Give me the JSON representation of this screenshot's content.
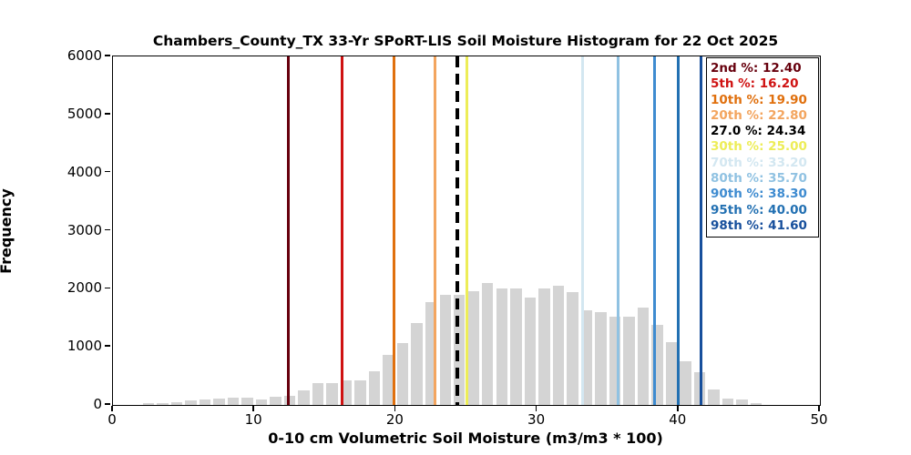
{
  "title": "Chambers_County_TX 33-Yr SPoRT-LIS Soil Moisture Histogram for 22 Oct 2025",
  "axes": {
    "xlabel": "0-10 cm Volumetric Soil Moisture (m3/m3 * 100)",
    "ylabel": "Frequency",
    "x_ticks": [
      0,
      10,
      20,
      30,
      40,
      50
    ],
    "y_ticks": [
      0,
      1000,
      2000,
      3000,
      4000,
      5000,
      6000
    ]
  },
  "chart_data": {
    "type": "bar",
    "title": "Chambers_County_TX 33-Yr SPoRT-LIS Soil Moisture Histogram for 22 Oct 2025",
    "xlabel": "0-10 cm Volumetric Soil Moisture (m3/m3 * 100)",
    "ylabel": "Frequency",
    "xlim": [
      0,
      50
    ],
    "ylim": [
      0,
      6000
    ],
    "grid": false,
    "legend_position": "upper right",
    "bar_color": "#d4d4d4",
    "bin_width": 1,
    "bar_relative_width": 0.8,
    "bins": {
      "centers": [
        2.5,
        3.5,
        4.5,
        5.5,
        6.5,
        7.5,
        8.5,
        9.5,
        10.5,
        11.5,
        12.5,
        13.5,
        14.5,
        15.5,
        16.5,
        17.5,
        18.5,
        19.5,
        20.5,
        21.5,
        22.5,
        23.5,
        24.5,
        25.5,
        26.5,
        27.5,
        28.5,
        29.5,
        30.5,
        31.5,
        32.5,
        33.5,
        34.5,
        35.5,
        36.5,
        37.5,
        38.5,
        39.5,
        40.5,
        41.5,
        42.5,
        43.5,
        44.5,
        45.5
      ],
      "frequencies": [
        30,
        30,
        40,
        80,
        100,
        110,
        120,
        125,
        100,
        140,
        150,
        245,
        375,
        375,
        420,
        430,
        575,
        860,
        1060,
        1405,
        1770,
        1900,
        1890,
        1960,
        2100,
        2010,
        2010,
        1855,
        2010,
        2050,
        1940,
        1630,
        1595,
        1515,
        1525,
        1670,
        1380,
        1080,
        750,
        570,
        270,
        105,
        90,
        35
      ]
    },
    "percentile_lines": [
      {
        "label": "2nd %",
        "value": 12.4,
        "color": "#67000d",
        "style": "solid",
        "legend_text": "2nd %: 12.40"
      },
      {
        "label": "5th %",
        "value": 16.2,
        "color": "#cf1212",
        "style": "solid",
        "legend_text": "5th %: 16.20"
      },
      {
        "label": "10th %",
        "value": 19.9,
        "color": "#e0700e",
        "style": "solid",
        "legend_text": "10th %: 19.90"
      },
      {
        "label": "20th %",
        "value": 22.8,
        "color": "#f3a55f",
        "style": "solid",
        "legend_text": "20th %: 22.80"
      },
      {
        "label": "27.0 %",
        "value": 24.34,
        "color": "#000000",
        "style": "dashed",
        "legend_text": "27.0 %: 24.34"
      },
      {
        "label": "30th %",
        "value": 25.0,
        "color": "#eded58",
        "style": "solid",
        "legend_text": "30th %: 25.00"
      },
      {
        "label": "70th %",
        "value": 33.2,
        "color": "#d3e7f1",
        "style": "solid",
        "legend_text": "70th %: 33.20"
      },
      {
        "label": "80th %",
        "value": 35.7,
        "color": "#90c2e2",
        "style": "solid",
        "legend_text": "80th %: 35.70"
      },
      {
        "label": "90th %",
        "value": 38.3,
        "color": "#3e8bd0",
        "style": "solid",
        "legend_text": "90th %: 38.30"
      },
      {
        "label": "95th %",
        "value": 40.0,
        "color": "#2270b2",
        "style": "solid",
        "legend_text": "95th %: 40.00"
      },
      {
        "label": "98th %",
        "value": 41.6,
        "color": "#174f9c",
        "style": "solid",
        "legend_text": "98th %: 41.60"
      }
    ]
  }
}
